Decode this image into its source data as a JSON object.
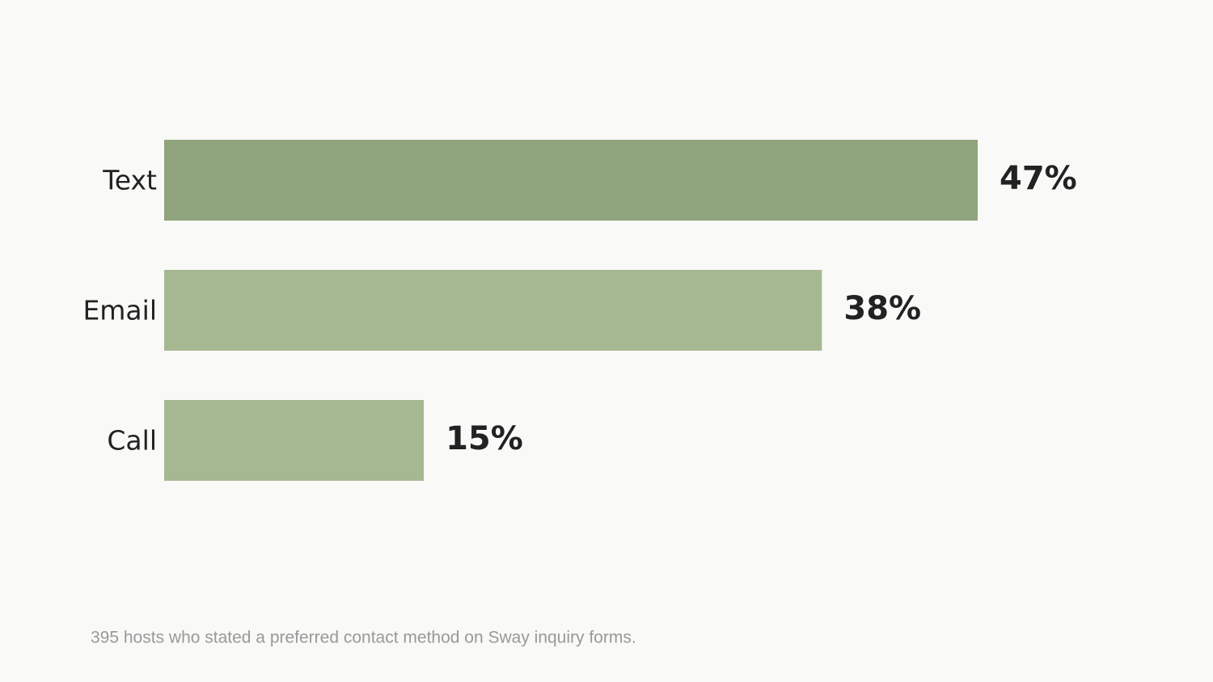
{
  "chart_data": {
    "type": "bar",
    "orientation": "horizontal",
    "categories": [
      "Text",
      "Email",
      "Call"
    ],
    "values": [
      47,
      38,
      15
    ],
    "value_labels": [
      "47%",
      "38%",
      "15%"
    ],
    "colors": [
      "#8fa47c",
      "#a6b892",
      "#a6b892"
    ],
    "note": "395 hosts who stated a preferred contact method on Sway inquiry forms."
  }
}
